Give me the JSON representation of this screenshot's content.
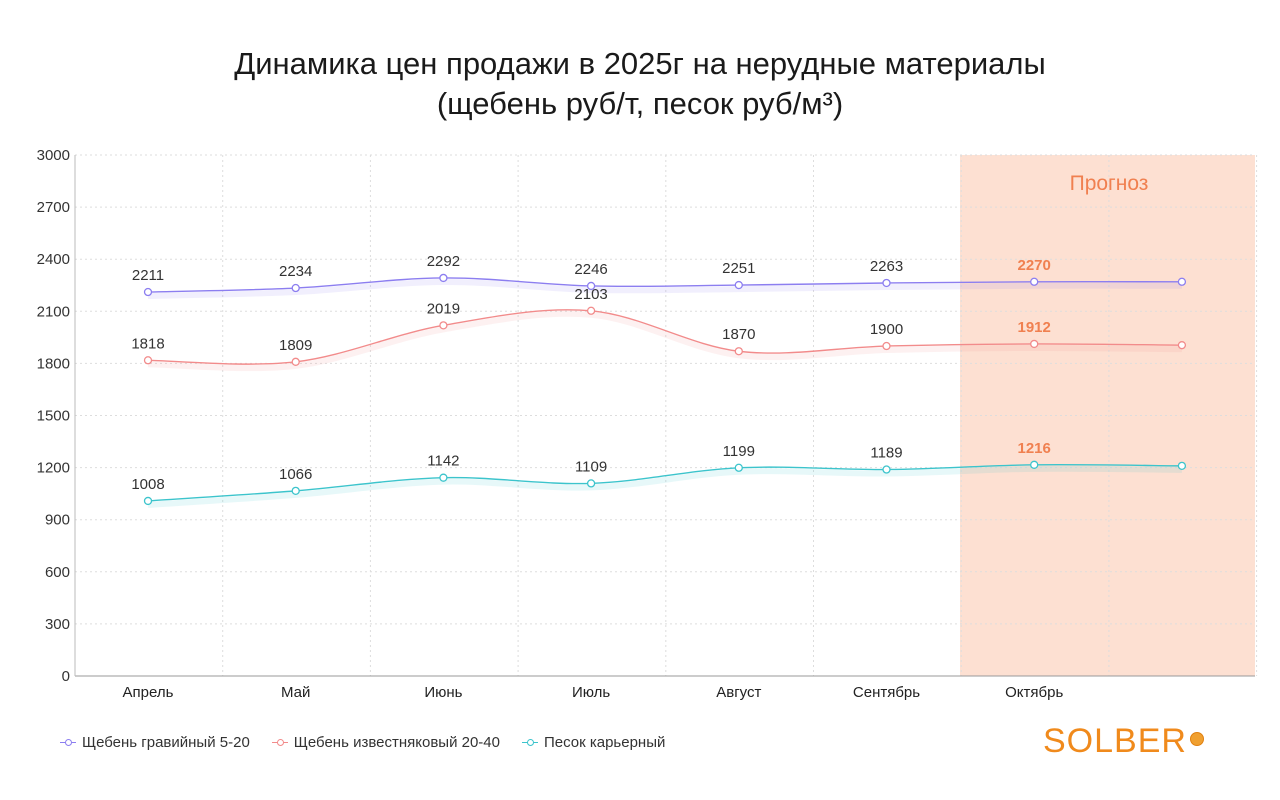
{
  "title_line1": "Динамика цен продажи в 2025г на нерудные материалы",
  "title_line2": "(щебень руб/т, песок руб/м³)",
  "forecast_label": "Прогноз",
  "logo_text": "SOLBER",
  "chart_data": {
    "type": "line",
    "title": "Динамика цен продажи в 2025г на нерудные материалы (щебень руб/т, песок руб/м³)",
    "categories": [
      "Апрель",
      "Май",
      "Июнь",
      "Июль",
      "Август",
      "Сентябрь",
      "Октябрь",
      ""
    ],
    "ylim": [
      0,
      3000
    ],
    "yticks": [
      0,
      300,
      600,
      900,
      1200,
      1500,
      1800,
      2100,
      2400,
      2700,
      3000
    ],
    "grid": true,
    "legend_position": "bottom-left",
    "forecast_from_index": 6,
    "series": [
      {
        "name": "Щебень гравийный 5-20",
        "color": "#8c7ef0",
        "values": [
          2211,
          2234,
          2292,
          2246,
          2251,
          2263,
          2270,
          2270
        ],
        "labels": [
          "2211",
          "2234",
          "2292",
          "2246",
          "2251",
          "2263",
          "2270",
          ""
        ]
      },
      {
        "name": "Щебень известняковый 20-40",
        "color": "#f28b8b",
        "values": [
          1818,
          1809,
          2019,
          2103,
          1870,
          1900,
          1912,
          1905
        ],
        "labels": [
          "1818",
          "1809",
          "2019",
          "2103",
          "1870",
          "1900",
          "1912",
          ""
        ]
      },
      {
        "name": "Песок карьерный",
        "color": "#3cc4cc",
        "values": [
          1008,
          1066,
          1142,
          1109,
          1199,
          1189,
          1216,
          1210
        ],
        "labels": [
          "1008",
          "1066",
          "1142",
          "1109",
          "1199",
          "1189",
          "1216",
          ""
        ]
      }
    ]
  },
  "colors": {
    "forecast_bg": "#fde0d2",
    "forecast_text": "#f08050",
    "grid": "#dddddd",
    "logo": "#f08a1c"
  }
}
